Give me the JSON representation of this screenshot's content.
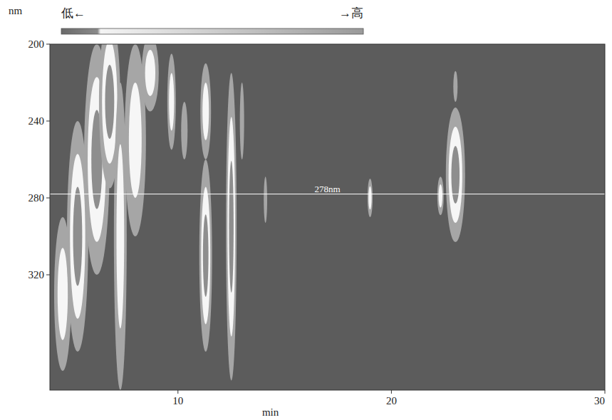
{
  "chart_data": {
    "type": "contour",
    "x_label": "min",
    "y_label": "nm",
    "xlim": [
      4,
      30
    ],
    "xticks": [
      10,
      20,
      30
    ],
    "ylim": [
      200,
      380
    ],
    "yticks": [
      200,
      240,
      280,
      320
    ],
    "color_bar": {
      "low_label": "低←",
      "high_label": "→高"
    },
    "reference_line": {
      "value": 278,
      "label": "278nm"
    },
    "peaks": [
      {
        "time": 4.6,
        "nm": 330,
        "time_width": 0.4,
        "nm_width": 40,
        "levels": 2
      },
      {
        "time": 5.3,
        "nm": 300,
        "time_width": 0.5,
        "nm_width": 60,
        "levels": 3
      },
      {
        "time": 6.2,
        "nm": 260,
        "time_width": 0.6,
        "nm_width": 60,
        "levels": 3
      },
      {
        "time": 6.8,
        "nm": 230,
        "time_width": 0.5,
        "nm_width": 45,
        "levels": 3
      },
      {
        "time": 7.3,
        "nm": 300,
        "time_width": 0.3,
        "nm_width": 80,
        "levels": 2
      },
      {
        "time": 8.0,
        "nm": 250,
        "time_width": 0.5,
        "nm_width": 50,
        "levels": 2
      },
      {
        "time": 8.7,
        "nm": 215,
        "time_width": 0.4,
        "nm_width": 20,
        "levels": 2
      },
      {
        "time": 9.7,
        "nm": 230,
        "time_width": 0.2,
        "nm_width": 25,
        "levels": 2
      },
      {
        "time": 10.3,
        "nm": 245,
        "time_width": 0.15,
        "nm_width": 15,
        "levels": 1
      },
      {
        "time": 11.3,
        "nm": 235,
        "time_width": 0.25,
        "nm_width": 25,
        "levels": 2
      },
      {
        "time": 11.3,
        "nm": 310,
        "time_width": 0.3,
        "nm_width": 50,
        "levels": 3
      },
      {
        "time": 12.5,
        "nm": 295,
        "time_width": 0.25,
        "nm_width": 80,
        "levels": 3
      },
      {
        "time": 13.0,
        "nm": 240,
        "time_width": 0.1,
        "nm_width": 20,
        "levels": 1
      },
      {
        "time": 14.1,
        "nm": 281,
        "time_width": 0.08,
        "nm_width": 12,
        "levels": 1
      },
      {
        "time": 19.0,
        "nm": 280,
        "time_width": 0.12,
        "nm_width": 10,
        "levels": 2
      },
      {
        "time": 22.3,
        "nm": 279,
        "time_width": 0.15,
        "nm_width": 10,
        "levels": 2
      },
      {
        "time": 23.0,
        "nm": 268,
        "time_width": 0.45,
        "nm_width": 35,
        "levels": 3
      },
      {
        "time": 23.0,
        "nm": 222,
        "time_width": 0.1,
        "nm_width": 8,
        "levels": 1
      }
    ]
  }
}
